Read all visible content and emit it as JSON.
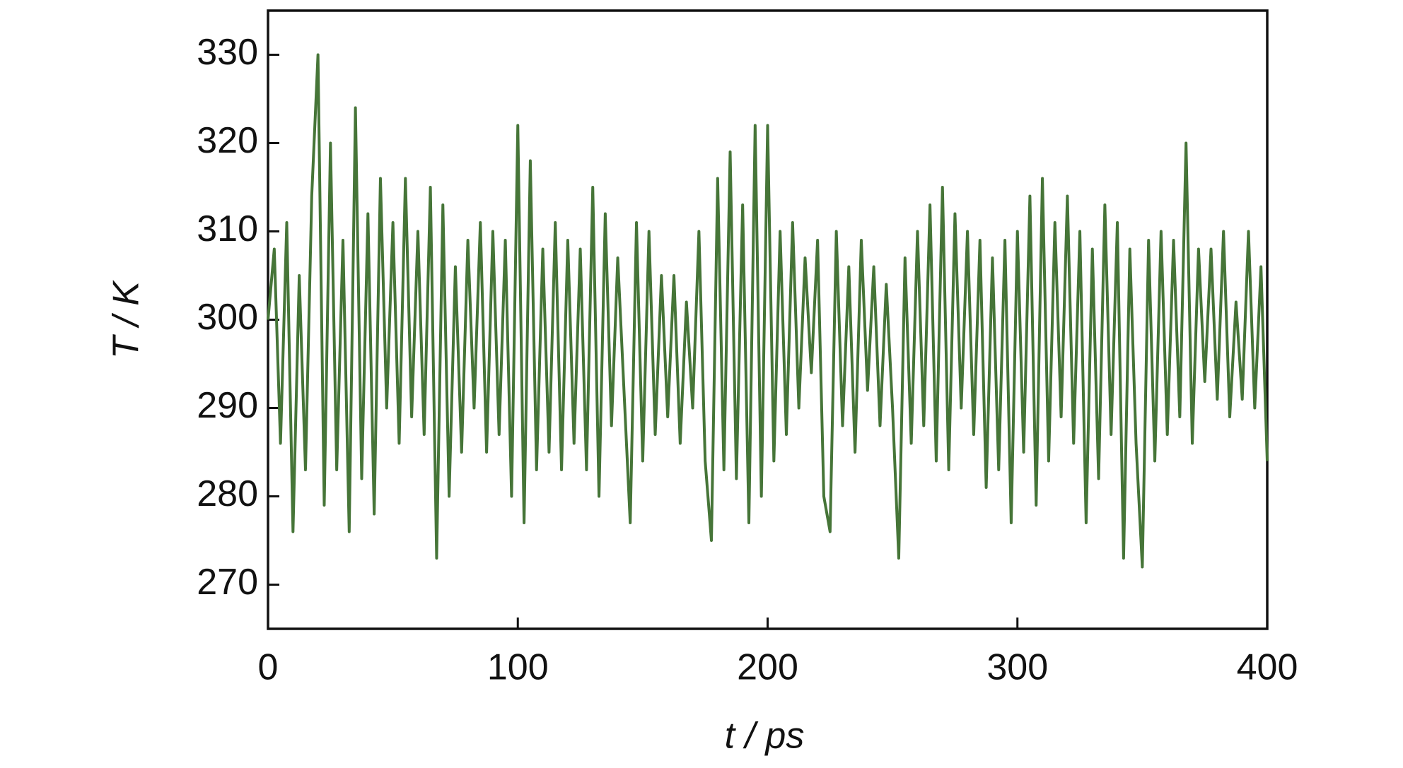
{
  "chart_data": {
    "type": "line",
    "xlabel": "t / ps",
    "ylabel": "T / K",
    "xlim": [
      0,
      400
    ],
    "ylim": [
      265,
      335
    ],
    "xticks": [
      0,
      100,
      200,
      300,
      400
    ],
    "yticks": [
      270,
      280,
      290,
      300,
      310,
      320,
      330
    ],
    "x": [
      0,
      2.5,
      5,
      7.5,
      10,
      12.5,
      15,
      17.5,
      20,
      22.5,
      25,
      27.5,
      30,
      32.5,
      35,
      37.5,
      40,
      42.5,
      45,
      47.5,
      50,
      52.5,
      55,
      57.5,
      60,
      62.5,
      65,
      67.5,
      70,
      72.5,
      75,
      77.5,
      80,
      82.5,
      85,
      87.5,
      90,
      92.5,
      95,
      97.5,
      100,
      102.5,
      105,
      107.5,
      110,
      112.5,
      115,
      117.5,
      120,
      122.5,
      125,
      127.5,
      130,
      132.5,
      135,
      137.5,
      140,
      142.5,
      145,
      147.5,
      150,
      152.5,
      155,
      157.5,
      160,
      162.5,
      165,
      167.5,
      170,
      172.5,
      175,
      177.5,
      180,
      182.5,
      185,
      187.5,
      190,
      192.5,
      195,
      197.5,
      200,
      202.5,
      205,
      207.5,
      210,
      212.5,
      215,
      217.5,
      220,
      222.5,
      225,
      227.5,
      230,
      232.5,
      235,
      237.5,
      240,
      242.5,
      245,
      247.5,
      250,
      252.5,
      255,
      257.5,
      260,
      262.5,
      265,
      267.5,
      270,
      272.5,
      275,
      277.5,
      280,
      282.5,
      285,
      287.5,
      290,
      292.5,
      295,
      297.5,
      300,
      302.5,
      305,
      307.5,
      310,
      312.5,
      315,
      317.5,
      320,
      322.5,
      325,
      327.5,
      330,
      332.5,
      335,
      337.5,
      340,
      342.5,
      345,
      347.5,
      350,
      352.5,
      355,
      357.5,
      360,
      362.5,
      365,
      367.5,
      370,
      372.5,
      375,
      377.5,
      380,
      382.5,
      385,
      387.5,
      390,
      392.5,
      395,
      397.5,
      400
    ],
    "series": [
      {
        "color": "#467538",
        "values": [
          300,
          308,
          286,
          311,
          276,
          305,
          283,
          314,
          330,
          279,
          320,
          283,
          309,
          276,
          324,
          282,
          312,
          278,
          316,
          290,
          311,
          286,
          316,
          289,
          310,
          287,
          315,
          273,
          313,
          280,
          306,
          285,
          309,
          290,
          311,
          285,
          310,
          287,
          309,
          280,
          322,
          277,
          318,
          283,
          308,
          285,
          311,
          283,
          309,
          286,
          308,
          283,
          315,
          280,
          312,
          288,
          307,
          292,
          277,
          311,
          284,
          310,
          287,
          305,
          289,
          305,
          286,
          302,
          290,
          310,
          284,
          275,
          316,
          283,
          319,
          282,
          313,
          277,
          322,
          280,
          322,
          284,
          310,
          287,
          311,
          290,
          307,
          294,
          309,
          280,
          276,
          310,
          288,
          306,
          285,
          309,
          292,
          306,
          288,
          304,
          290,
          273,
          307,
          286,
          310,
          288,
          313,
          284,
          315,
          283,
          312,
          290,
          310,
          287,
          309,
          281,
          307,
          283,
          309,
          277,
          310,
          285,
          314,
          279,
          316,
          284,
          311,
          289,
          314,
          286,
          310,
          277,
          308,
          282,
          313,
          287,
          311,
          273,
          308,
          286,
          272,
          309,
          284,
          310,
          287,
          309,
          289,
          320,
          286,
          308,
          293,
          308,
          291,
          310,
          289,
          302,
          291,
          310,
          290,
          306,
          284
        ]
      }
    ]
  }
}
